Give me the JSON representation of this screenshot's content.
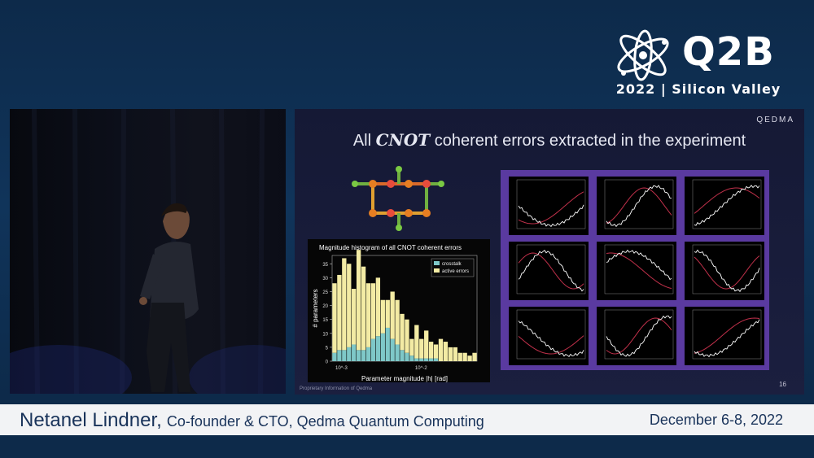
{
  "event": {
    "logo_text": "Q2B",
    "subtitle": "2022 | Silicon Valley"
  },
  "slide": {
    "brand": "QEDMA",
    "title_pre": "All",
    "title_em": "CNOT",
    "title_post": "coherent errors extracted in the experiment",
    "histogram_title": "Magnitude histogram of all CNOT coherent errors",
    "footer": "Proprietary Information of Qedma",
    "page_number": "16"
  },
  "lower_third": {
    "name": "Netanel Lindner,",
    "role": "Co-founder & CTO, Qedma Quantum Computing",
    "date": "December 6-8, 2022"
  },
  "chart_data": {
    "type": "bar",
    "ylabel": "# parameters",
    "xlabel": "Parameter magnitude |h| [rad]",
    "xticks": [
      "10^-3",
      "10^-2"
    ],
    "yticks": [
      0,
      5,
      10,
      15,
      20,
      25,
      30,
      35
    ],
    "ylim": [
      0,
      38
    ],
    "series": [
      {
        "name": "crosstalk",
        "color": "#7ec8c8",
        "values": [
          3,
          4,
          4,
          5,
          6,
          4,
          4,
          5,
          8,
          9,
          10,
          12,
          8,
          6,
          4,
          3,
          2,
          1,
          1,
          1,
          1,
          1,
          0,
          0,
          0,
          0,
          0,
          0,
          0,
          0
        ]
      },
      {
        "name": "active errors",
        "color": "#f3eba4",
        "values": [
          25,
          27,
          33,
          30,
          20,
          36,
          30,
          23,
          20,
          21,
          12,
          10,
          17,
          16,
          13,
          12,
          6,
          12,
          7,
          10,
          6,
          5,
          8,
          7,
          5,
          5,
          3,
          3,
          2,
          3
        ]
      }
    ],
    "legend": "top-right"
  }
}
